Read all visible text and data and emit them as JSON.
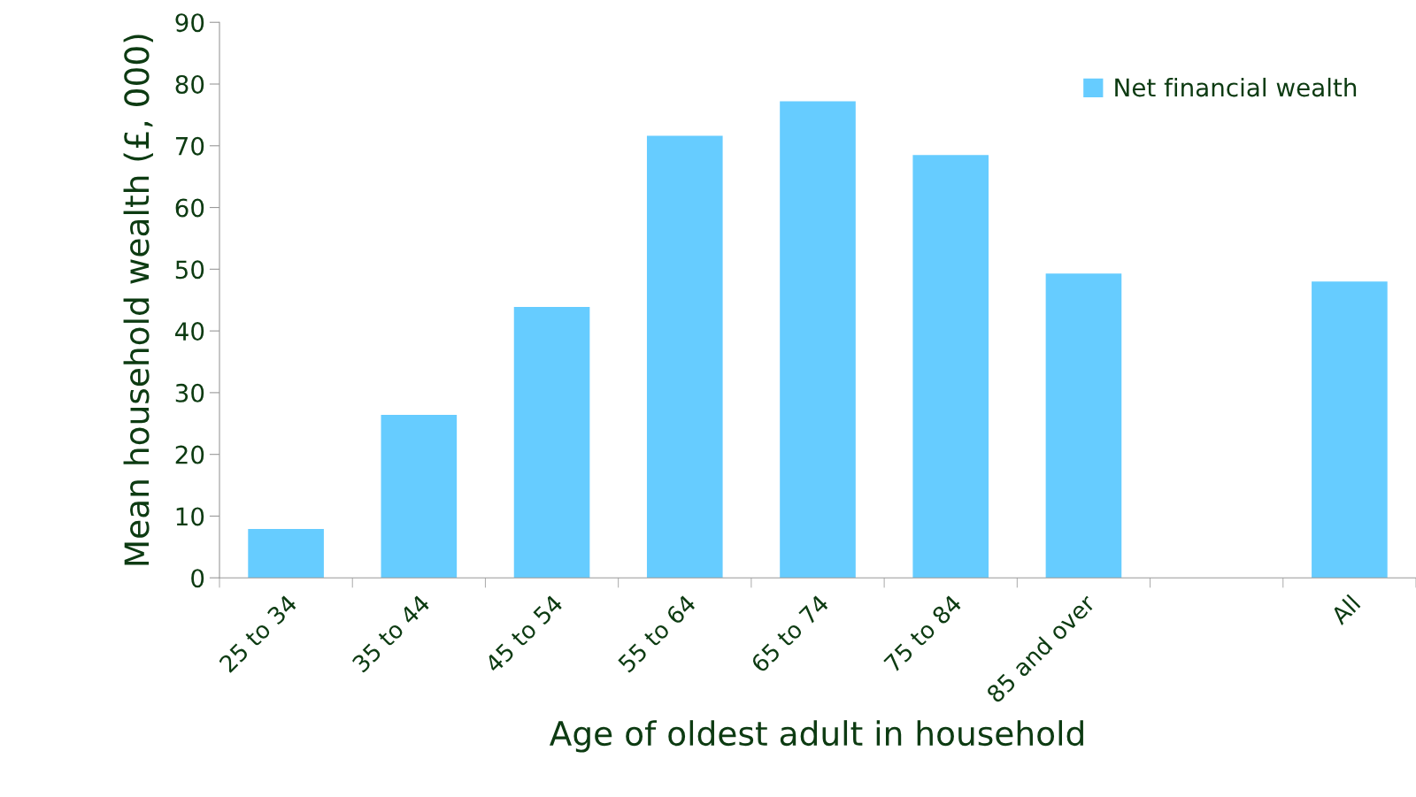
{
  "chart_data": {
    "type": "bar",
    "xlabel": "Age of oldest adult in household",
    "ylabel": "Mean household wealth (£, 000)",
    "categories": [
      "25 to 34",
      "35 to 44",
      "45 to 54",
      "55 to 64",
      "65 to 74",
      "75 to 84",
      "85 and over",
      null,
      "All"
    ],
    "series": [
      {
        "name": "Net financial wealth",
        "color": "#66ccff",
        "values": [
          7.9,
          26.4,
          43.9,
          71.6,
          77.2,
          68.5,
          49.3,
          null,
          48.0
        ]
      }
    ],
    "ylim": [
      0,
      90
    ],
    "yticks": [
      0,
      10,
      20,
      30,
      40,
      50,
      60,
      70,
      80,
      90
    ],
    "grid": false,
    "legend": "top right"
  }
}
